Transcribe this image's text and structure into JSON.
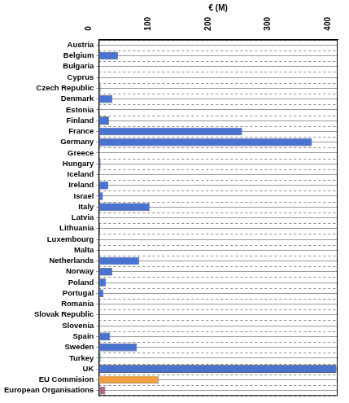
{
  "chart_data": {
    "type": "bar",
    "orientation": "horizontal",
    "x_label": "€ (M)",
    "categories": [
      "Austria",
      "Belgium",
      "Bulgaria",
      "Cyprus",
      "Czech Republic",
      "Denmark",
      "Estonia",
      "Finland",
      "France",
      "Germany",
      "Greece",
      "Hungary",
      "Iceland",
      "Ireland",
      "Israel",
      "Italy",
      "Latvia",
      "Lithuania",
      "Luxembourg",
      "Malta",
      "Netherlands",
      "Norway",
      "Poland",
      "Portugal",
      "Romania",
      "Slovak Republic",
      "Slovenia",
      "Spain",
      "Sweden",
      "Turkey",
      "UK",
      "EU Commision",
      "European Organisations"
    ],
    "values": [
      0,
      32,
      0,
      0,
      3,
      23,
      0,
      17,
      240,
      357,
      1,
      3,
      0,
      16,
      7,
      85,
      1,
      2,
      1,
      0,
      68,
      23,
      12,
      8,
      2,
      2,
      2,
      19,
      64,
      3,
      398,
      100,
      11
    ],
    "colors": [
      "#4a72d0",
      "#4a72d0",
      "#4a72d0",
      "#4a72d0",
      "#4a72d0",
      "#4a72d0",
      "#4a72d0",
      "#4a72d0",
      "#4a72d0",
      "#4a72d0",
      "#4a72d0",
      "#4a72d0",
      "#4a72d0",
      "#4a72d0",
      "#4a72d0",
      "#4a72d0",
      "#4a72d0",
      "#4a72d0",
      "#4a72d0",
      "#4a72d0",
      "#4a72d0",
      "#4a72d0",
      "#4a72d0",
      "#4a72d0",
      "#4a72d0",
      "#4a72d0",
      "#4a72d0",
      "#4a72d0",
      "#4a72d0",
      "#4a72d0",
      "#4a72d0",
      "#f0a040",
      "#a86a8a"
    ],
    "xlim": [
      0,
      400
    ],
    "xticks": [
      0,
      100,
      200,
      300,
      400
    ],
    "grid": true
  }
}
